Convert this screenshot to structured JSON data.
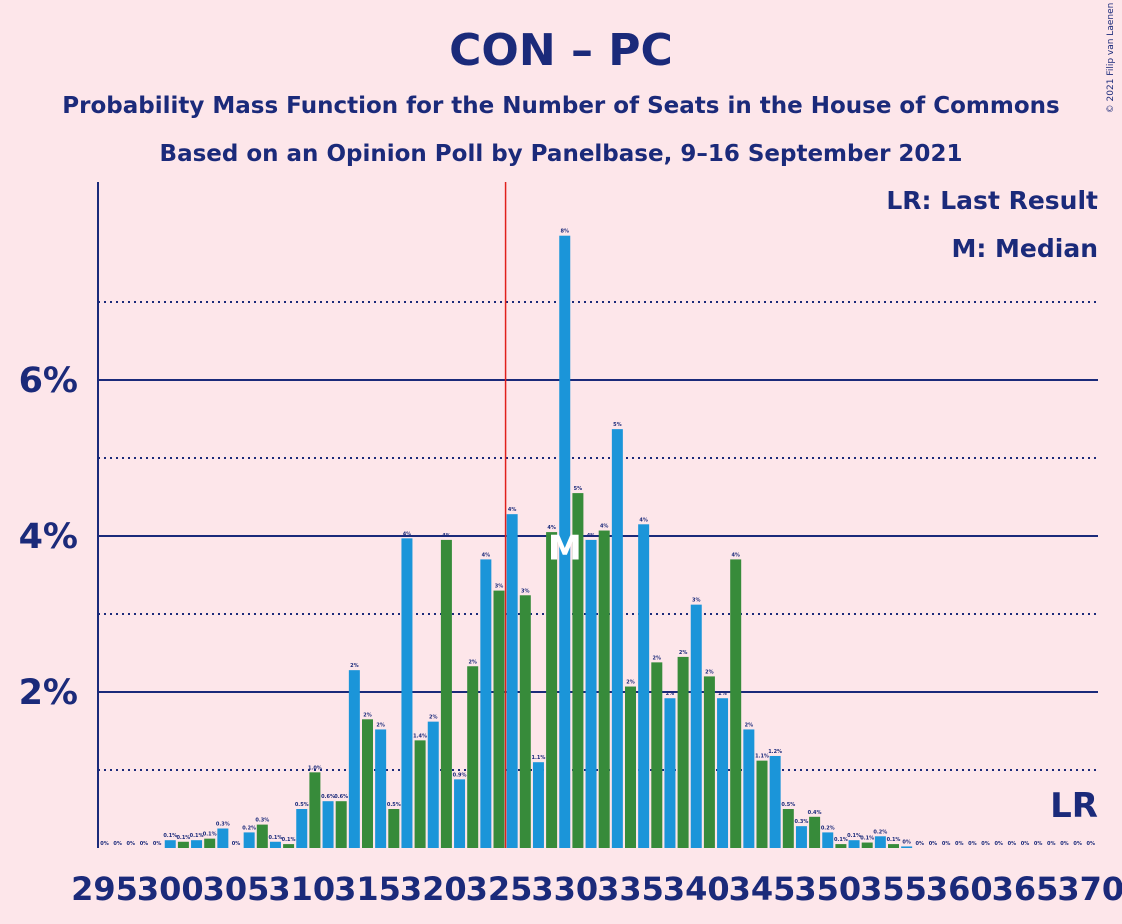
{
  "chart_data": {
    "type": "bar",
    "title": "CON – PC",
    "subtitle1": "Probability Mass Function for the Number of Seats in the House of Commons",
    "subtitle2": "Based on an Opinion Poll by Panelbase, 9–16 September 2021",
    "copyright": "© 2021 Filip van Laenen",
    "legend": {
      "lr": "LR: Last Result",
      "m": "M: Median"
    },
    "xlim": [
      295,
      370
    ],
    "ylim": [
      0,
      8.5
    ],
    "x_ticks": [
      295,
      300,
      305,
      310,
      315,
      320,
      325,
      330,
      335,
      340,
      345,
      350,
      355,
      360,
      365,
      370
    ],
    "y_tick_labels": [
      {
        "value": 2,
        "label": "2%"
      },
      {
        "value": 4,
        "label": "4%"
      },
      {
        "value": 6,
        "label": "6%"
      }
    ],
    "solid_gridlines": [
      2,
      4,
      6
    ],
    "dotted_gridlines": [
      1,
      3,
      5,
      7
    ],
    "majority_line": 326,
    "median": 330,
    "last_result": 369,
    "median_marker": "M",
    "last_result_marker": "LR",
    "colors": {
      "background": "#fde6ea",
      "blue": "#1b95d9",
      "green": "#378b3a",
      "text": "#1b2a7a",
      "majority": "#e0201c"
    },
    "bars": [
      {
        "x": 295,
        "value": 0.0,
        "label": "0%"
      },
      {
        "x": 296,
        "value": 0.0,
        "label": "0%"
      },
      {
        "x": 297,
        "value": 0.0,
        "label": "0%"
      },
      {
        "x": 298,
        "value": 0.0,
        "label": "0%"
      },
      {
        "x": 299,
        "value": 0.0,
        "label": "0%"
      },
      {
        "x": 300,
        "value": 0.1,
        "label": "0.1%"
      },
      {
        "x": 301,
        "value": 0.08,
        "label": "0.1%"
      },
      {
        "x": 302,
        "value": 0.1,
        "label": "0.1%"
      },
      {
        "x": 303,
        "value": 0.12,
        "label": "0.1%"
      },
      {
        "x": 304,
        "value": 0.25,
        "label": "0.3%"
      },
      {
        "x": 305,
        "value": 0.0,
        "label": "0%"
      },
      {
        "x": 306,
        "value": 0.2,
        "label": "0.2%"
      },
      {
        "x": 307,
        "value": 0.3,
        "label": "0.3%"
      },
      {
        "x": 308,
        "value": 0.08,
        "label": "0.1%"
      },
      {
        "x": 309,
        "value": 0.05,
        "label": "0.1%"
      },
      {
        "x": 310,
        "value": 0.5,
        "label": "0.5%"
      },
      {
        "x": 311,
        "value": 0.97,
        "label": "1.0%"
      },
      {
        "x": 312,
        "value": 0.6,
        "label": "0.6%"
      },
      {
        "x": 313,
        "value": 0.6,
        "label": "0.6%"
      },
      {
        "x": 314,
        "value": 2.28,
        "label": "2%"
      },
      {
        "x": 315,
        "value": 1.65,
        "label": "2%"
      },
      {
        "x": 316,
        "value": 1.52,
        "label": "2%"
      },
      {
        "x": 317,
        "value": 0.5,
        "label": "0.5%"
      },
      {
        "x": 318,
        "value": 3.97,
        "label": "4%"
      },
      {
        "x": 319,
        "value": 1.38,
        "label": "1.4%"
      },
      {
        "x": 320,
        "value": 1.62,
        "label": "2%"
      },
      {
        "x": 321,
        "value": 3.95,
        "label": "4%"
      },
      {
        "x": 322,
        "value": 0.88,
        "label": "0.9%"
      },
      {
        "x": 323,
        "value": 2.33,
        "label": "2%"
      },
      {
        "x": 324,
        "value": 3.7,
        "label": "4%"
      },
      {
        "x": 325,
        "value": 3.3,
        "label": "3%"
      },
      {
        "x": 326,
        "value": 4.28,
        "label": "4%"
      },
      {
        "x": 327,
        "value": 3.24,
        "label": "3%"
      },
      {
        "x": 328,
        "value": 1.1,
        "label": "1.1%"
      },
      {
        "x": 329,
        "value": 4.05,
        "label": "4%"
      },
      {
        "x": 330,
        "value": 7.85,
        "label": "8%"
      },
      {
        "x": 331,
        "value": 4.55,
        "label": "5%"
      },
      {
        "x": 332,
        "value": 3.95,
        "label": "4%"
      },
      {
        "x": 333,
        "value": 4.07,
        "label": "4%"
      },
      {
        "x": 334,
        "value": 5.37,
        "label": "5%"
      },
      {
        "x": 335,
        "value": 2.07,
        "label": "2%"
      },
      {
        "x": 336,
        "value": 4.15,
        "label": "4%"
      },
      {
        "x": 337,
        "value": 2.38,
        "label": "2%"
      },
      {
        "x": 338,
        "value": 1.92,
        "label": "2%"
      },
      {
        "x": 339,
        "value": 2.45,
        "label": "2%"
      },
      {
        "x": 340,
        "value": 3.12,
        "label": "3%"
      },
      {
        "x": 341,
        "value": 2.2,
        "label": "2%"
      },
      {
        "x": 342,
        "value": 1.92,
        "label": "2%"
      },
      {
        "x": 343,
        "value": 3.7,
        "label": "4%"
      },
      {
        "x": 344,
        "value": 1.52,
        "label": "2%"
      },
      {
        "x": 345,
        "value": 1.12,
        "label": "1.1%"
      },
      {
        "x": 346,
        "value": 1.18,
        "label": "1.2%"
      },
      {
        "x": 347,
        "value": 0.5,
        "label": "0.5%"
      },
      {
        "x": 348,
        "value": 0.28,
        "label": "0.3%"
      },
      {
        "x": 349,
        "value": 0.4,
        "label": "0.4%"
      },
      {
        "x": 350,
        "value": 0.2,
        "label": "0.2%"
      },
      {
        "x": 351,
        "value": 0.05,
        "label": "0.1%"
      },
      {
        "x": 352,
        "value": 0.1,
        "label": "0.1%"
      },
      {
        "x": 353,
        "value": 0.07,
        "label": "0.1%"
      },
      {
        "x": 354,
        "value": 0.15,
        "label": "0.2%"
      },
      {
        "x": 355,
        "value": 0.05,
        "label": "0.1%"
      },
      {
        "x": 356,
        "value": 0.02,
        "label": "0%"
      },
      {
        "x": 357,
        "value": 0.0,
        "label": "0%"
      },
      {
        "x": 358,
        "value": 0.0,
        "label": "0%"
      },
      {
        "x": 359,
        "value": 0.0,
        "label": "0%"
      },
      {
        "x": 360,
        "value": 0.0,
        "label": "0%"
      },
      {
        "x": 361,
        "value": 0.0,
        "label": "0%"
      },
      {
        "x": 362,
        "value": 0.0,
        "label": "0%"
      },
      {
        "x": 363,
        "value": 0.0,
        "label": "0%"
      },
      {
        "x": 364,
        "value": 0.0,
        "label": "0%"
      },
      {
        "x": 365,
        "value": 0.0,
        "label": "0%"
      },
      {
        "x": 366,
        "value": 0.0,
        "label": "0%"
      },
      {
        "x": 367,
        "value": 0.0,
        "label": "0%"
      },
      {
        "x": 368,
        "value": 0.0,
        "label": "0%"
      },
      {
        "x": 369,
        "value": 0.0,
        "label": "0%"
      },
      {
        "x": 370,
        "value": 0.0,
        "label": "0%"
      }
    ]
  }
}
